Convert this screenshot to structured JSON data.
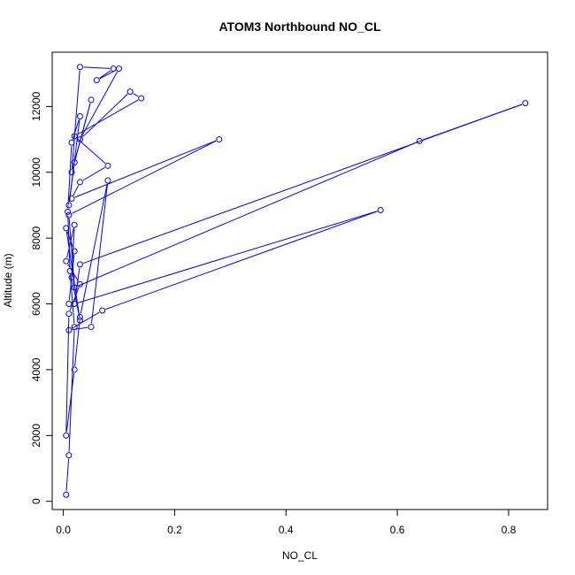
{
  "chart_data": {
    "type": "line",
    "title": "ATOM3 Northbound NO_CL",
    "xlabel": "NO_CL",
    "ylabel": "Altitude (m)",
    "xlim": [
      -0.02,
      0.87
    ],
    "ylim": [
      -250,
      13650
    ],
    "x_ticks": [
      0.0,
      0.2,
      0.4,
      0.6,
      0.8
    ],
    "x_tick_labels": [
      "0.0",
      "0.2",
      "0.4",
      "0.6",
      "0.8"
    ],
    "y_ticks": [
      0,
      2000,
      4000,
      6000,
      8000,
      10000,
      12000
    ],
    "y_tick_labels": [
      "0",
      "2000",
      "4000",
      "6000",
      "8000",
      "10000",
      "12000"
    ],
    "grid": false,
    "legend": "none",
    "marker": "open-circle",
    "colors": {
      "series": "#0000ff",
      "axis": "#000000",
      "background": "#ffffff"
    },
    "series": [
      {
        "x": [
          0.005,
          0.01,
          0.02,
          0.012,
          0.008,
          0.015,
          0.03,
          0.01,
          0.02,
          0.05,
          0.015,
          0.03,
          0.09,
          0.06,
          0.1,
          0.03,
          0.12,
          0.14,
          0.02,
          0.08,
          0.03,
          0.015,
          0.28,
          0.01,
          0.02,
          0.64,
          0.83,
          0.03,
          0.02,
          0.57,
          0.07,
          0.01,
          0.05,
          0.08,
          0.03,
          0.02,
          0.005,
          0.01,
          0.03,
          0.005,
          0.02,
          0.015,
          0.03,
          0.005,
          0.02,
          0.01
        ],
        "y": [
          200,
          1400,
          5300,
          7000,
          8800,
          10900,
          11700,
          9000,
          10300,
          12200,
          10000,
          13200,
          13150,
          12800,
          13150,
          11000,
          12450,
          12250,
          11100,
          10200,
          9700,
          9200,
          11000,
          8700,
          6500,
          10950,
          12100,
          7200,
          6000,
          8850,
          5800,
          5200,
          5300,
          9750,
          5600,
          4000,
          2000,
          5700,
          6600,
          7300,
          8400,
          6800,
          5500,
          8300,
          7600,
          6000
        ]
      }
    ]
  }
}
